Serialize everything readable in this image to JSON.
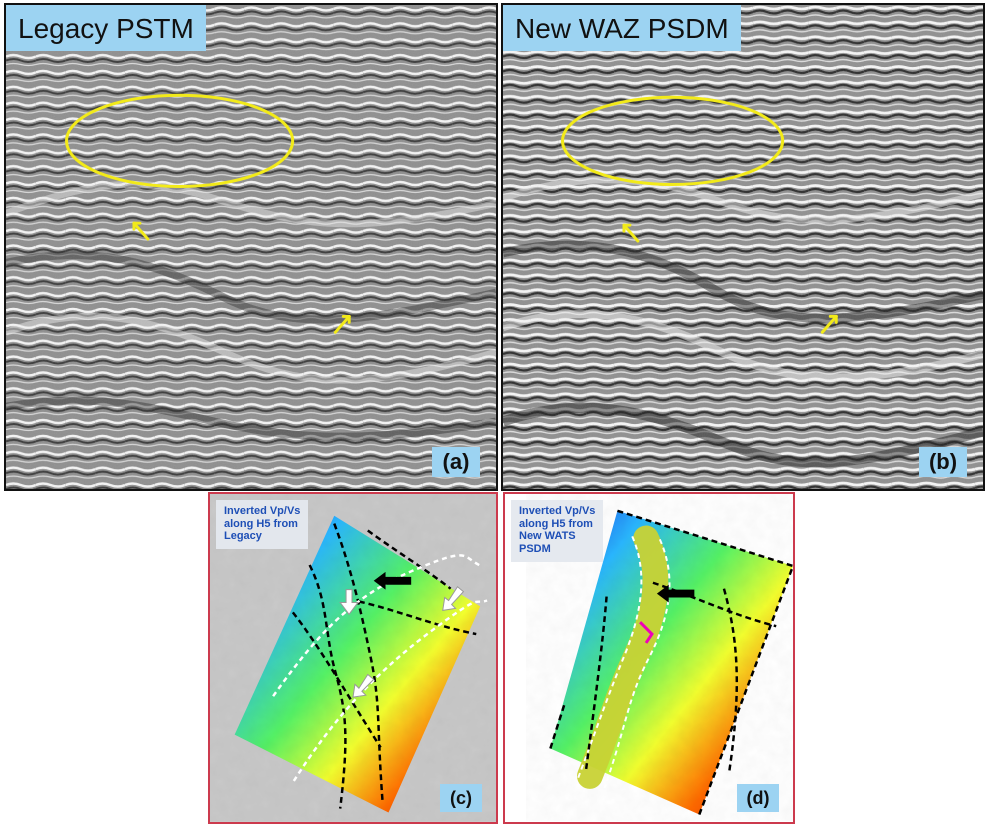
{
  "panels": {
    "top_left": {
      "title": "Legacy PSTM",
      "letter": "(a)"
    },
    "top_right": {
      "title": "New WAZ PSDM",
      "letter": "(b)"
    },
    "bottom_left": {
      "title": "Inverted Vp/Vs\nalong H5 from\nLegacy",
      "letter": "(c)"
    },
    "bottom_right": {
      "title": "Inverted Vp/Vs\nalong H5 from\nNew WATS\nPSDM",
      "letter": "(d)"
    }
  },
  "colors": {
    "seismic_bg": "#8f8f8f",
    "panel_label_bg": "#9cd3f2",
    "highlight": "#f2ea19",
    "map_border": "#cc3a4d",
    "map_label_text": "#1e4fb6"
  },
  "icons": {
    "ellipse": "yellow-ellipse-annotation",
    "arrow": "yellow-arrow-annotation",
    "white_arrow": "white-arrow-annotation",
    "black_arrow": "black-arrow-annotation"
  }
}
